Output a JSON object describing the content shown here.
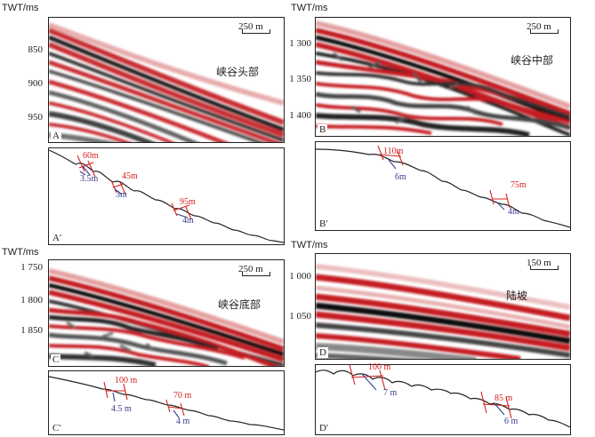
{
  "colors": {
    "red": "#d62020",
    "blue": "#3a3f8f",
    "seismic_dark": "#111111",
    "seismic_red": "#b8121d"
  },
  "unit_label": "TWT/ms",
  "panels": {
    "A": {
      "letter": "A",
      "region": "峡谷头部",
      "scale": "250 m",
      "ticks": [
        "850",
        "900",
        "950"
      ]
    },
    "B": {
      "letter": "B",
      "region": "峡谷中部",
      "scale": "250 m",
      "ticks": [
        "1 300",
        "1 350",
        "1 400"
      ]
    },
    "C": {
      "letter": "C",
      "region": "峡谷底部",
      "scale": "250 m",
      "ticks": [
        "1 750",
        "1 800",
        "1 850"
      ]
    },
    "D": {
      "letter": "D",
      "region": "陆坡",
      "scale": "150 m",
      "ticks": [
        "1 000",
        "1 050"
      ]
    },
    "A2": {
      "letter": "A'",
      "measurements": [
        {
          "wavelength": "60m",
          "height": "3.5m"
        },
        {
          "wavelength": "45m",
          "height": "3m"
        },
        {
          "wavelength": "95m",
          "height": "4m"
        }
      ]
    },
    "B2": {
      "letter": "B'",
      "measurements": [
        {
          "wavelength": "110m",
          "height": "6m"
        },
        {
          "wavelength": "75m",
          "height": "4m"
        }
      ]
    },
    "C2": {
      "letter": "C'",
      "measurements": [
        {
          "wavelength": "100 m",
          "height": "4.5 m"
        },
        {
          "wavelength": "70 m",
          "height": "4 m"
        }
      ]
    },
    "D2": {
      "letter": "D'",
      "measurements": [
        {
          "wavelength": "100 m",
          "height": "7 m"
        },
        {
          "wavelength": "85 m",
          "height": "6 m"
        }
      ]
    }
  }
}
